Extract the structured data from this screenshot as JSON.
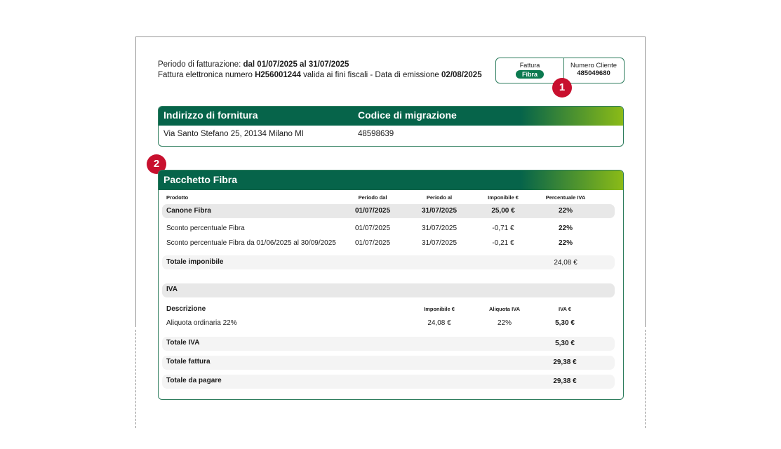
{
  "header": {
    "period_label": "Periodo di fatturazione:",
    "period": "dal 01/07/2025 al 31/07/2025",
    "invoice_label": "Fattura elettronica numero",
    "invoice_number": "H256001244",
    "validity": "valida ai fini fiscali - Data di emissione",
    "issue_date": "02/08/2025"
  },
  "summary": {
    "invoice_label": "Fattura",
    "invoice_type": "Fibra",
    "customer_label": "Numero Cliente",
    "customer_number": "485049680"
  },
  "markers": [
    "1",
    "2"
  ],
  "supply": {
    "columns": [
      "Indirizzo di fornitura",
      "Codice di migrazione"
    ],
    "row": [
      "Via Santo Stefano 25, 20134 Milano MI",
      "48598639"
    ]
  },
  "package": {
    "title": "Pacchetto Fibra",
    "columns": [
      "Prodotto",
      "Periodo dal",
      "Periodo al",
      "Imponibile €",
      "Percentuale IVA"
    ],
    "rows": [
      [
        "Canone Fibra",
        "01/07/2025",
        "31/07/2025",
        "25,00 €",
        "22%"
      ],
      [
        "Sconto percentuale Fibra",
        "01/07/2025",
        "31/07/2025",
        "-0,71 €",
        "22%"
      ],
      [
        "Sconto percentuale Fibra da 01/06/2025 al 30/09/2025",
        "01/07/2025",
        "31/07/2025",
        "-0,21 €",
        "22%"
      ]
    ],
    "taxable_total": {
      "label": "Totale imponibile",
      "value": "24,08 €"
    },
    "vat": {
      "title": "IVA",
      "columns": [
        "Descrizione",
        "Imponibile €",
        "Aliquota IVA",
        "IVA €"
      ],
      "rows": [
        [
          "Aliquota ordinaria 22%",
          "24,08 €",
          "22%",
          "5,30 €"
        ]
      ]
    },
    "totals": [
      {
        "label": "Totale IVA",
        "value": "5,30 €"
      },
      {
        "label": "Totale fattura",
        "value": "29,38 €"
      },
      {
        "label": "Totale da pagare",
        "value": "29,38 €"
      }
    ]
  }
}
